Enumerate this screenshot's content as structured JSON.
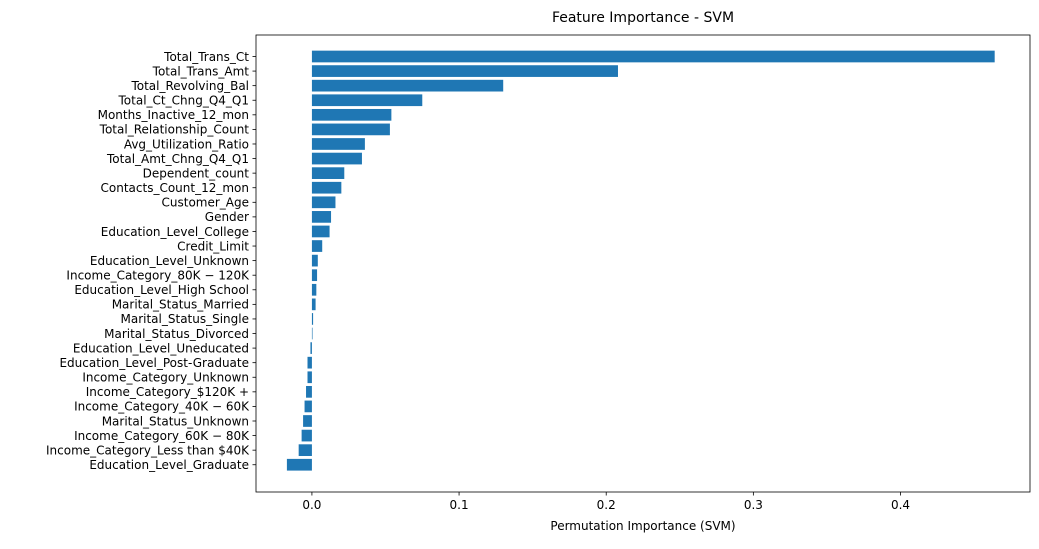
{
  "chart_data": {
    "type": "bar",
    "orientation": "horizontal",
    "title": "Feature Importance - SVM",
    "xlabel": "Permutation Importance (SVM)",
    "ylabel": "",
    "xlim": [
      -0.038,
      0.488
    ],
    "xticks": [
      0.0,
      0.1,
      0.2,
      0.3,
      0.4
    ],
    "xtick_labels": [
      "0.0",
      "0.1",
      "0.2",
      "0.3",
      "0.4"
    ],
    "grid": false,
    "bar_color": "#1f77b4",
    "categories": [
      "Total_Trans_Ct",
      "Total_Trans_Amt",
      "Total_Revolving_Bal",
      "Total_Ct_Chng_Q4_Q1",
      "Months_Inactive_12_mon",
      "Total_Relationship_Count",
      "Avg_Utilization_Ratio",
      "Total_Amt_Chng_Q4_Q1",
      "Dependent_count",
      "Contacts_Count_12_mon",
      "Customer_Age",
      "Gender",
      "Education_Level_College",
      "Credit_Limit",
      "Education_Level_Unknown",
      "Income_Category_80K − 120K",
      "Education_Level_High School",
      "Marital_Status_Married",
      "Marital_Status_Single",
      "Marital_Status_Divorced",
      "Education_Level_Uneducated",
      "Education_Level_Post-Graduate",
      "Income_Category_Unknown",
      "Income_Category_$120K +",
      "Income_Category_40K − 60K",
      "Marital_Status_Unknown",
      "Income_Category_60K − 80K",
      "Income_Category_Less than $40K",
      "Education_Level_Graduate"
    ],
    "values": [
      0.464,
      0.208,
      0.13,
      0.075,
      0.054,
      0.053,
      0.036,
      0.034,
      0.022,
      0.02,
      0.016,
      0.013,
      0.012,
      0.007,
      0.004,
      0.0035,
      0.003,
      0.0025,
      0.0008,
      0.0003,
      -0.001,
      -0.003,
      -0.003,
      -0.004,
      -0.005,
      -0.006,
      -0.007,
      -0.009,
      -0.017
    ]
  }
}
